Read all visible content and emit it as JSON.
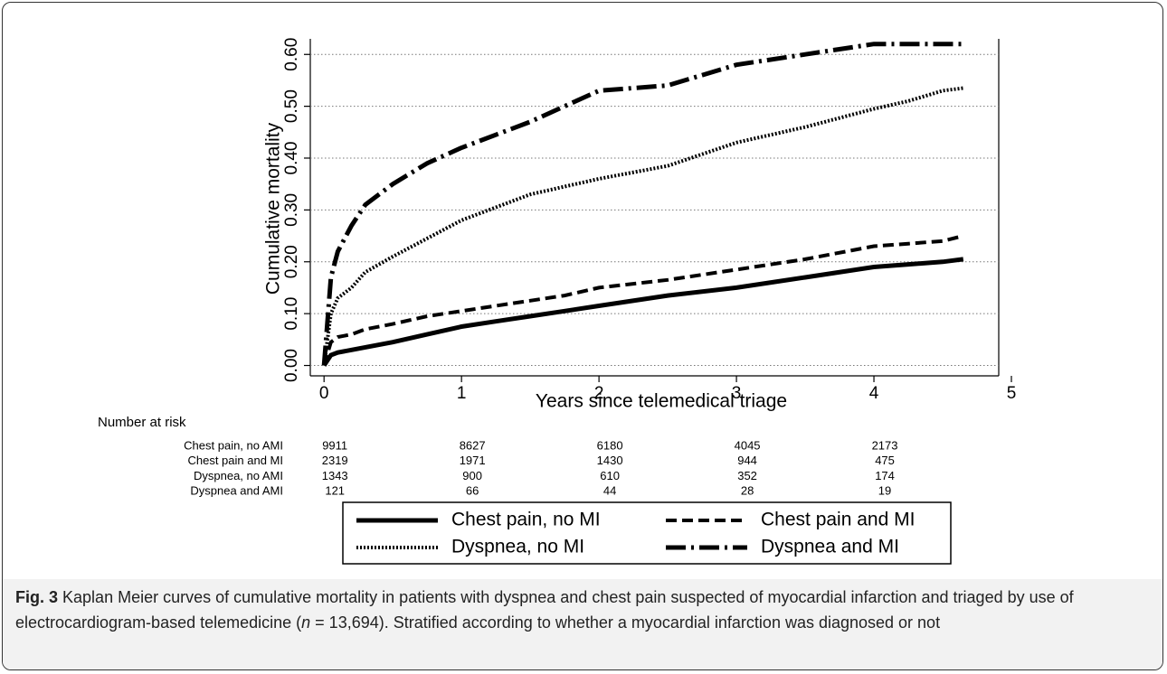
{
  "chart_data": {
    "type": "line",
    "x_label": "Years since telemedical triage",
    "y_label": "Cumulative mortality",
    "x": [
      0,
      0.05,
      0.1,
      0.2,
      0.3,
      0.5,
      0.75,
      1,
      1.25,
      1.5,
      1.75,
      2,
      2.5,
      3,
      3.5,
      4,
      4.25,
      4.5,
      4.65
    ],
    "series": [
      {
        "name": "Chest pain, no MI",
        "color": "#000000",
        "dash": "solid",
        "values": [
          0,
          0.02,
          0.025,
          0.03,
          0.035,
          0.045,
          0.06,
          0.075,
          0.085,
          0.095,
          0.105,
          0.115,
          0.135,
          0.15,
          0.17,
          0.19,
          0.195,
          0.2,
          0.205
        ]
      },
      {
        "name": "Chest pain and MI",
        "color": "#000000",
        "dash": "dashed",
        "values": [
          0,
          0.045,
          0.055,
          0.06,
          0.07,
          0.08,
          0.095,
          0.105,
          0.115,
          0.125,
          0.135,
          0.15,
          0.165,
          0.185,
          0.205,
          0.23,
          0.235,
          0.24,
          0.25
        ]
      },
      {
        "name": "Dyspnea, no MI",
        "color": "#000000",
        "dash": "dotted",
        "values": [
          0,
          0.1,
          0.13,
          0.15,
          0.18,
          0.21,
          0.245,
          0.28,
          0.305,
          0.33,
          0.345,
          0.36,
          0.385,
          0.43,
          0.46,
          0.495,
          0.51,
          0.53,
          0.535
        ]
      },
      {
        "name": "Dyspnea and MI",
        "color": "#000000",
        "dash": "dashdot",
        "values": [
          0,
          0.17,
          0.22,
          0.27,
          0.31,
          0.35,
          0.39,
          0.42,
          0.445,
          0.47,
          0.5,
          0.53,
          0.54,
          0.58,
          0.6,
          0.62,
          0.62,
          0.62,
          0.62
        ]
      }
    ],
    "xlim": [
      -0.1,
      5
    ],
    "xticks": [
      0,
      1,
      2,
      3,
      4,
      5
    ],
    "ylim": [
      -0.02,
      0.63
    ],
    "yticks": [
      {
        "value": 0,
        "label": "0.00"
      },
      {
        "value": 0.1,
        "label": "0.10"
      },
      {
        "value": 0.2,
        "label": "0.20"
      },
      {
        "value": 0.3,
        "label": "0.30"
      },
      {
        "value": 0.4,
        "label": "0.40"
      },
      {
        "value": 0.5,
        "label": "0.50"
      },
      {
        "value": 0.6,
        "label": "0.60"
      }
    ],
    "grid": true,
    "legend": "bottom",
    "risk_table": {
      "title": "Number at risk",
      "rows": [
        {
          "name": "Chest pain, no AMI",
          "values": [
            9911,
            8627,
            6180,
            4045,
            2173
          ]
        },
        {
          "name": "Chest pain and MI",
          "values": [
            2319,
            1971,
            1430,
            944,
            475
          ]
        },
        {
          "name": "Dyspnea, no AMI",
          "values": [
            1343,
            900,
            610,
            352,
            174
          ]
        },
        {
          "name": "Dyspnea and AMI",
          "values": [
            121,
            66,
            44,
            28,
            19
          ]
        }
      ]
    }
  },
  "caption": {
    "label": "Fig. 3",
    "text_before": "Kaplan Meier curves of cumulative mortality in patients with dyspnea and chest pain suspected of myocardial infarction and triaged by use of electrocardiogram-based telemedicine (",
    "italic": "n",
    "text_after": " = 13,694). Stratified according to whether a myocardial infarction was diagnosed or not"
  }
}
